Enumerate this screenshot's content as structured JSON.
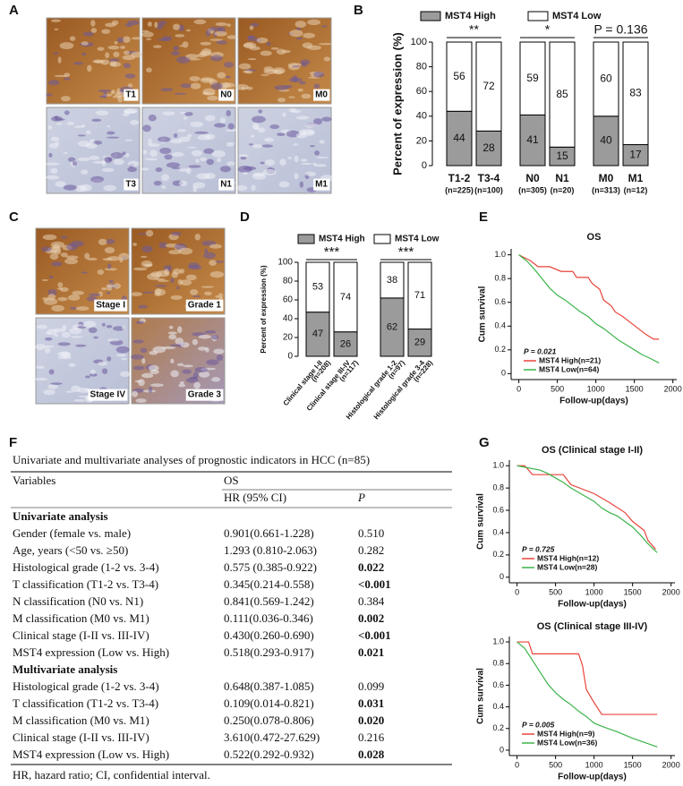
{
  "panel_labels": [
    "A",
    "B",
    "C",
    "D",
    "E",
    "F",
    "G"
  ],
  "histology": {
    "A": [
      "T1",
      "N0",
      "M0",
      "T3",
      "N1",
      "M1"
    ],
    "C": [
      "Stage I",
      "Grade 1",
      "Stage IV",
      "Grade 3"
    ]
  },
  "chart_data": [
    {
      "type": "bar",
      "ylabel": "Percent of expression (%)",
      "categories": [
        "T1-2",
        "T3-4",
        "N0",
        "N1",
        "M0",
        "M1"
      ],
      "category_notes": [
        "(n=225)",
        "(n=100)",
        "(n=305)",
        "(n=20)",
        "(n=313)",
        "(n=12)"
      ],
      "series": [
        {
          "name": "MST4 High",
          "color": "#9b9b9b",
          "values": [
            44,
            28,
            41,
            15,
            40,
            17
          ]
        },
        {
          "name": "MST4 Low",
          "color": "#ffffff",
          "values": [
            56,
            72,
            59,
            85,
            60,
            83
          ]
        }
      ],
      "annotations": [
        "**",
        "*",
        "P = 0.136"
      ],
      "ylim": [
        0,
        100
      ],
      "yticks": [
        0,
        20,
        40,
        60,
        80,
        100
      ]
    },
    {
      "type": "bar",
      "ylabel": "Percent of expression (%)",
      "categories": [
        "Clinical stage I-II",
        "Clinical stage III-IV",
        "Histological grade 1-2",
        "Histological grade 3-4"
      ],
      "category_notes": [
        "(n=208)",
        "(n=117)",
        "(n=97)",
        "(n=228)"
      ],
      "series": [
        {
          "name": "MST4 High",
          "color": "#9b9b9b",
          "values": [
            47,
            26,
            62,
            29
          ]
        },
        {
          "name": "MST4 Low",
          "color": "#ffffff",
          "values": [
            53,
            74,
            38,
            71
          ]
        }
      ],
      "annotations": [
        "***",
        "***"
      ],
      "ylim": [
        0,
        100
      ],
      "yticks": [
        0,
        20,
        40,
        60,
        80,
        100
      ]
    },
    {
      "type": "line",
      "title": "OS",
      "xlabel": "Follow-up(days)",
      "ylabel": "Cum survival",
      "annotation": "P = 0.021",
      "xlim": [
        -100,
        2050
      ],
      "xticks": [
        0,
        500,
        1000,
        1500,
        2000
      ],
      "ylim": [
        -0.05,
        1.05
      ],
      "yticks": [
        0,
        0.2,
        0.4,
        0.6,
        0.8,
        {
          "value": 1,
          "label": "1.0"
        }
      ],
      "series": [
        {
          "name": "MST4 High(n=21)",
          "color": "#e8443a",
          "x": [
            0,
            150,
            250,
            400,
            550,
            700,
            750,
            900,
            950,
            1050,
            1100,
            1200,
            1250,
            1350,
            1450,
            1550,
            1650,
            1750,
            1820
          ],
          "values": [
            1,
            0.95,
            0.9,
            0.9,
            0.86,
            0.86,
            0.81,
            0.81,
            0.76,
            0.71,
            0.62,
            0.57,
            0.52,
            0.48,
            0.43,
            0.38,
            0.33,
            0.29,
            0.29
          ]
        },
        {
          "name": "MST4 Low(n=64)",
          "color": "#3cb44b",
          "x": [
            0,
            100,
            200,
            300,
            400,
            500,
            600,
            700,
            800,
            900,
            1000,
            1100,
            1200,
            1300,
            1400,
            1500,
            1600,
            1700,
            1820
          ],
          "values": [
            1,
            0.95,
            0.88,
            0.8,
            0.72,
            0.66,
            0.62,
            0.57,
            0.52,
            0.48,
            0.42,
            0.38,
            0.33,
            0.28,
            0.24,
            0.2,
            0.16,
            0.13,
            0.09
          ]
        }
      ]
    },
    {
      "type": "line",
      "title": "OS (Clinical stage I-II)",
      "xlabel": "Follow-up(days)",
      "ylabel": "Cum survival",
      "annotation": "P = 0.725",
      "xlim": [
        -100,
        2050
      ],
      "xticks": [
        0,
        500,
        1000,
        1500,
        2000
      ],
      "ylim": [
        -0.05,
        1.05
      ],
      "yticks": [
        0,
        0.2,
        0.4,
        0.6,
        0.8,
        {
          "value": 1,
          "label": "1.0"
        }
      ],
      "series": [
        {
          "name": "MST4 High(n=12)",
          "color": "#e8443a",
          "x": [
            0,
            100,
            200,
            600,
            700,
            1000,
            1200,
            1400,
            1500,
            1650,
            1700,
            1800
          ],
          "values": [
            1,
            1,
            0.92,
            0.92,
            0.83,
            0.75,
            0.67,
            0.58,
            0.5,
            0.42,
            0.33,
            0.25
          ]
        },
        {
          "name": "MST4 Low(n=28)",
          "color": "#3cb44b",
          "x": [
            0,
            300,
            400,
            500,
            600,
            700,
            900,
            1000,
            1100,
            1200,
            1300,
            1400,
            1500,
            1600,
            1700,
            1820
          ],
          "values": [
            1,
            0.96,
            0.93,
            0.89,
            0.85,
            0.8,
            0.72,
            0.68,
            0.62,
            0.58,
            0.55,
            0.5,
            0.45,
            0.38,
            0.3,
            0.22
          ]
        }
      ]
    },
    {
      "type": "line",
      "title": "OS (Clinical stage III-IV)",
      "xlabel": "Follow-up(days)",
      "ylabel": "Cum survival",
      "annotation": "P = 0.005",
      "xlim": [
        -100,
        2050
      ],
      "xticks": [
        0,
        500,
        1000,
        1500,
        2000
      ],
      "ylim": [
        -0.05,
        1.05
      ],
      "yticks": [
        0,
        0.2,
        0.4,
        0.6,
        0.8,
        {
          "value": 1,
          "label": "1.0"
        }
      ],
      "series": [
        {
          "name": "MST4 High(n=9)",
          "color": "#e8443a",
          "x": [
            0,
            150,
            200,
            800,
            850,
            900,
            1000,
            1100,
            1820
          ],
          "values": [
            1,
            1,
            0.89,
            0.89,
            0.78,
            0.56,
            0.44,
            0.33,
            0.33
          ]
        },
        {
          "name": "MST4 Low(n=36)",
          "color": "#3cb44b",
          "x": [
            0,
            100,
            200,
            300,
            400,
            500,
            600,
            700,
            800,
            900,
            1000,
            1100,
            1300,
            1500,
            1700,
            1820
          ],
          "values": [
            1,
            0.94,
            0.83,
            0.72,
            0.61,
            0.53,
            0.47,
            0.42,
            0.36,
            0.31,
            0.25,
            0.22,
            0.17,
            0.11,
            0.06,
            0.03
          ]
        }
      ]
    }
  ],
  "table": {
    "title": "Univariate and multivariate analyses of prognostic indicators in HCC (n=85)",
    "header": {
      "variables": "Variables",
      "os": "OS",
      "hr": "HR (95% CI)",
      "p": "P"
    },
    "rows": [
      {
        "section": "Univariate analysis"
      },
      {
        "variable": "Gender (female vs. male)",
        "hr": "0.901(0.661-1.228)",
        "p": "0.510",
        "significant": false
      },
      {
        "variable": "Age, years (<50 vs. ≥50)",
        "hr": "1.293 (0.810-2.063)",
        "p": "0.282",
        "significant": false
      },
      {
        "variable": "Histological grade (1-2 vs. 3-4)",
        "hr": "0.575 (0.385-0.922)",
        "p": "0.022",
        "significant": true
      },
      {
        "variable": "T classification (T1-2 vs. T3-4)",
        "hr": "0.345(0.214-0.558)",
        "p": "<0.001",
        "significant": true
      },
      {
        "variable": "N classification (N0 vs. N1)",
        "hr": "0.841(0.569-1.242)",
        "p": "0.384",
        "significant": false
      },
      {
        "variable": "M classification (M0 vs. M1)",
        "hr": "0.111(0.036-0.346)",
        "p": "0.002",
        "significant": true
      },
      {
        "variable": "Clinical stage (I-II vs. III-IV)",
        "hr": "0.430(0.260-0.690)",
        "p": "<0.001",
        "significant": true
      },
      {
        "variable": "MST4 expression (Low vs. High)",
        "hr": "0.518(0.293-0.917)",
        "p": "0.021",
        "significant": true
      },
      {
        "section": "Multivariate analysis"
      },
      {
        "variable": "Histological grade (1-2 vs. 3-4)",
        "hr": "0.648(0.387-1.085)",
        "p": "0.099",
        "significant": false
      },
      {
        "variable": "T classification (T1-2 vs. T3-4)",
        "hr": "0.109(0.014-0.821)",
        "p": "0.031",
        "significant": true
      },
      {
        "variable": "M classification (M0 vs. M1)",
        "hr": "0.250(0.078-0.806)",
        "p": "0.020",
        "significant": true
      },
      {
        "variable": "Clinical stage (I-II vs. III-IV)",
        "hr": "3.610(0.472-27.629)",
        "p": "0.216",
        "significant": false
      },
      {
        "variable": "MST4 expression (Low vs. High)",
        "hr": "0.522(0.292-0.932)",
        "p": "0.028",
        "significant": true
      }
    ],
    "footnote": "HR, hazard ratio; CI, confidential interval."
  }
}
